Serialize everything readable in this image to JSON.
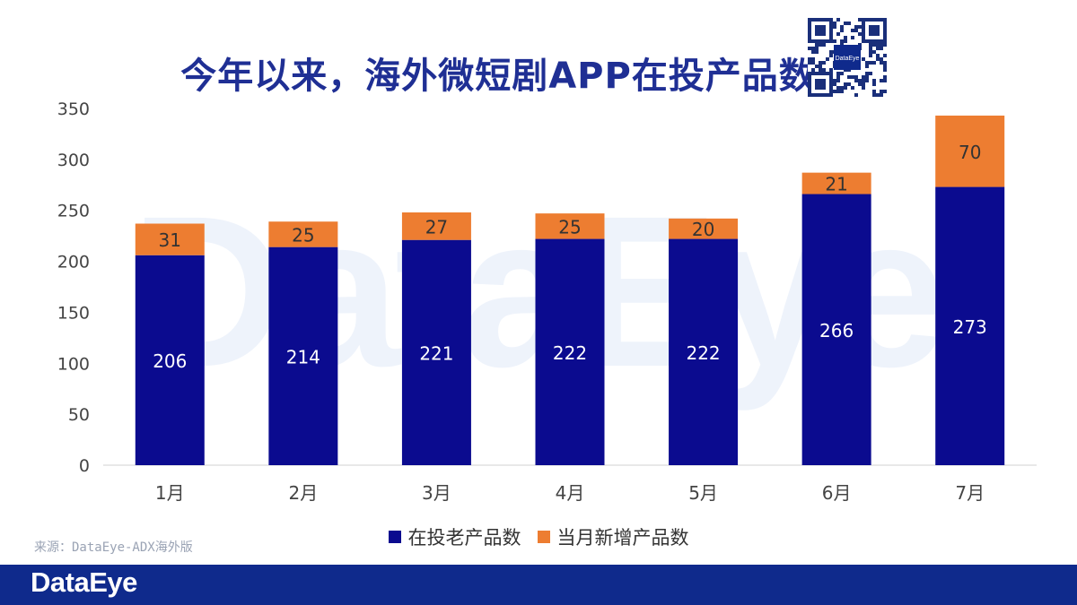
{
  "title": "今年以来，海外微短剧APP在投产品数",
  "source": "来源：DataEye-ADX海外版",
  "watermark_text": "DataEye",
  "footer_logo": "DataEye",
  "qr_label": "DataEye",
  "colors": {
    "title": "#1f2f94",
    "existing": "#0b0b8f",
    "new": "#ed7d31",
    "footer": "#0f2a8c"
  },
  "chart_data": {
    "type": "bar",
    "stacked": true,
    "categories": [
      "1月",
      "2月",
      "3月",
      "4月",
      "5月",
      "6月",
      "7月"
    ],
    "series": [
      {
        "name": "在投老产品数",
        "values": [
          206,
          214,
          221,
          222,
          222,
          266,
          273
        ],
        "color": "#0b0b8f"
      },
      {
        "name": "当月新增产品数",
        "values": [
          31,
          25,
          27,
          25,
          20,
          21,
          70
        ],
        "color": "#ed7d31"
      }
    ],
    "yticks": [
      0,
      50,
      100,
      150,
      200,
      250,
      300,
      350
    ],
    "ylim": [
      0,
      350
    ],
    "grid": false,
    "legend": "bottom"
  }
}
